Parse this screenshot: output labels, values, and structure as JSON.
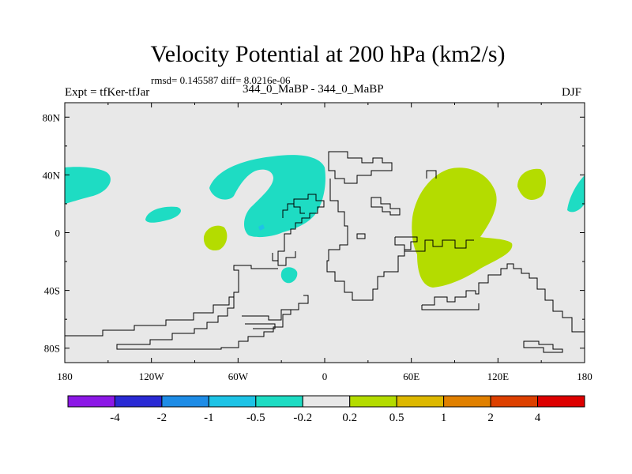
{
  "figure": {
    "title": "Velocity Potential at 200 hPa (km2/s)",
    "stats": "rmsd= 0.145587 diff= 8.0216e-06",
    "experiment": "Expt = tfKer-tfJar",
    "case": "344_0_MaBP - 344_0_MaBP",
    "season": "DJF"
  },
  "map": {
    "background_color": "#e8e8e8",
    "lon_tick_labels": [
      "180",
      "120W",
      "60W",
      "0",
      "60E",
      "120E",
      "180"
    ],
    "lat_tick_labels": [
      "80N",
      "40N",
      "0",
      "40S",
      "80S"
    ]
  },
  "colorbar": {
    "colors": [
      "#8c18e6",
      "#2a2ad4",
      "#1e8ce6",
      "#1ec3e6",
      "#1edcc3",
      "#e8e8e8",
      "#b4dc00",
      "#ddb800",
      "#e08000",
      "#dd4000",
      "#dd0000"
    ],
    "labels": [
      "-4",
      "-2",
      "-1",
      "-0.5",
      "-0.2",
      "0.2",
      "0.5",
      "1",
      "2",
      "4"
    ]
  }
}
